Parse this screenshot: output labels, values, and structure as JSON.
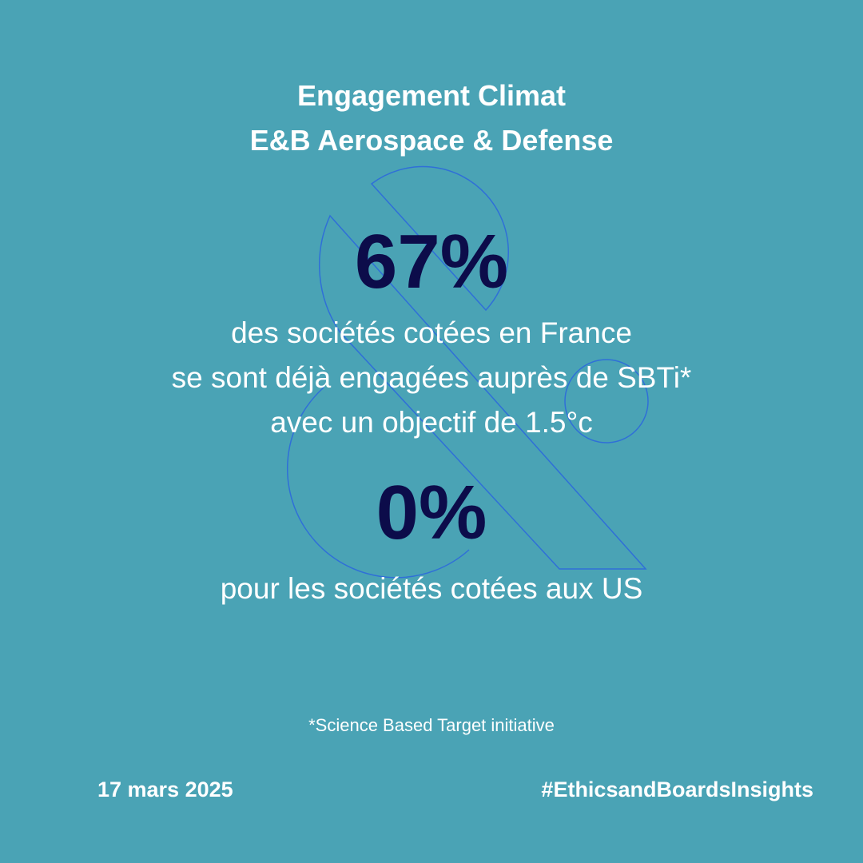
{
  "header": {
    "title_lines": [
      "Engagement Climat",
      "E&B Aerospace & Defense"
    ]
  },
  "stat_france": {
    "figure": "67%",
    "description_lines": [
      "des sociétés cotées en France",
      "se sont déjà engagées auprès de SBTi*",
      "avec un objectif de 1.5°c"
    ]
  },
  "stat_us": {
    "figure": "0%",
    "description": "pour les sociétés cotées aux US"
  },
  "footnote": "*Science Based Target initiative",
  "footer": {
    "date": "17 mars 2025",
    "hashtag": "#EthicsandBoardsInsights"
  }
}
